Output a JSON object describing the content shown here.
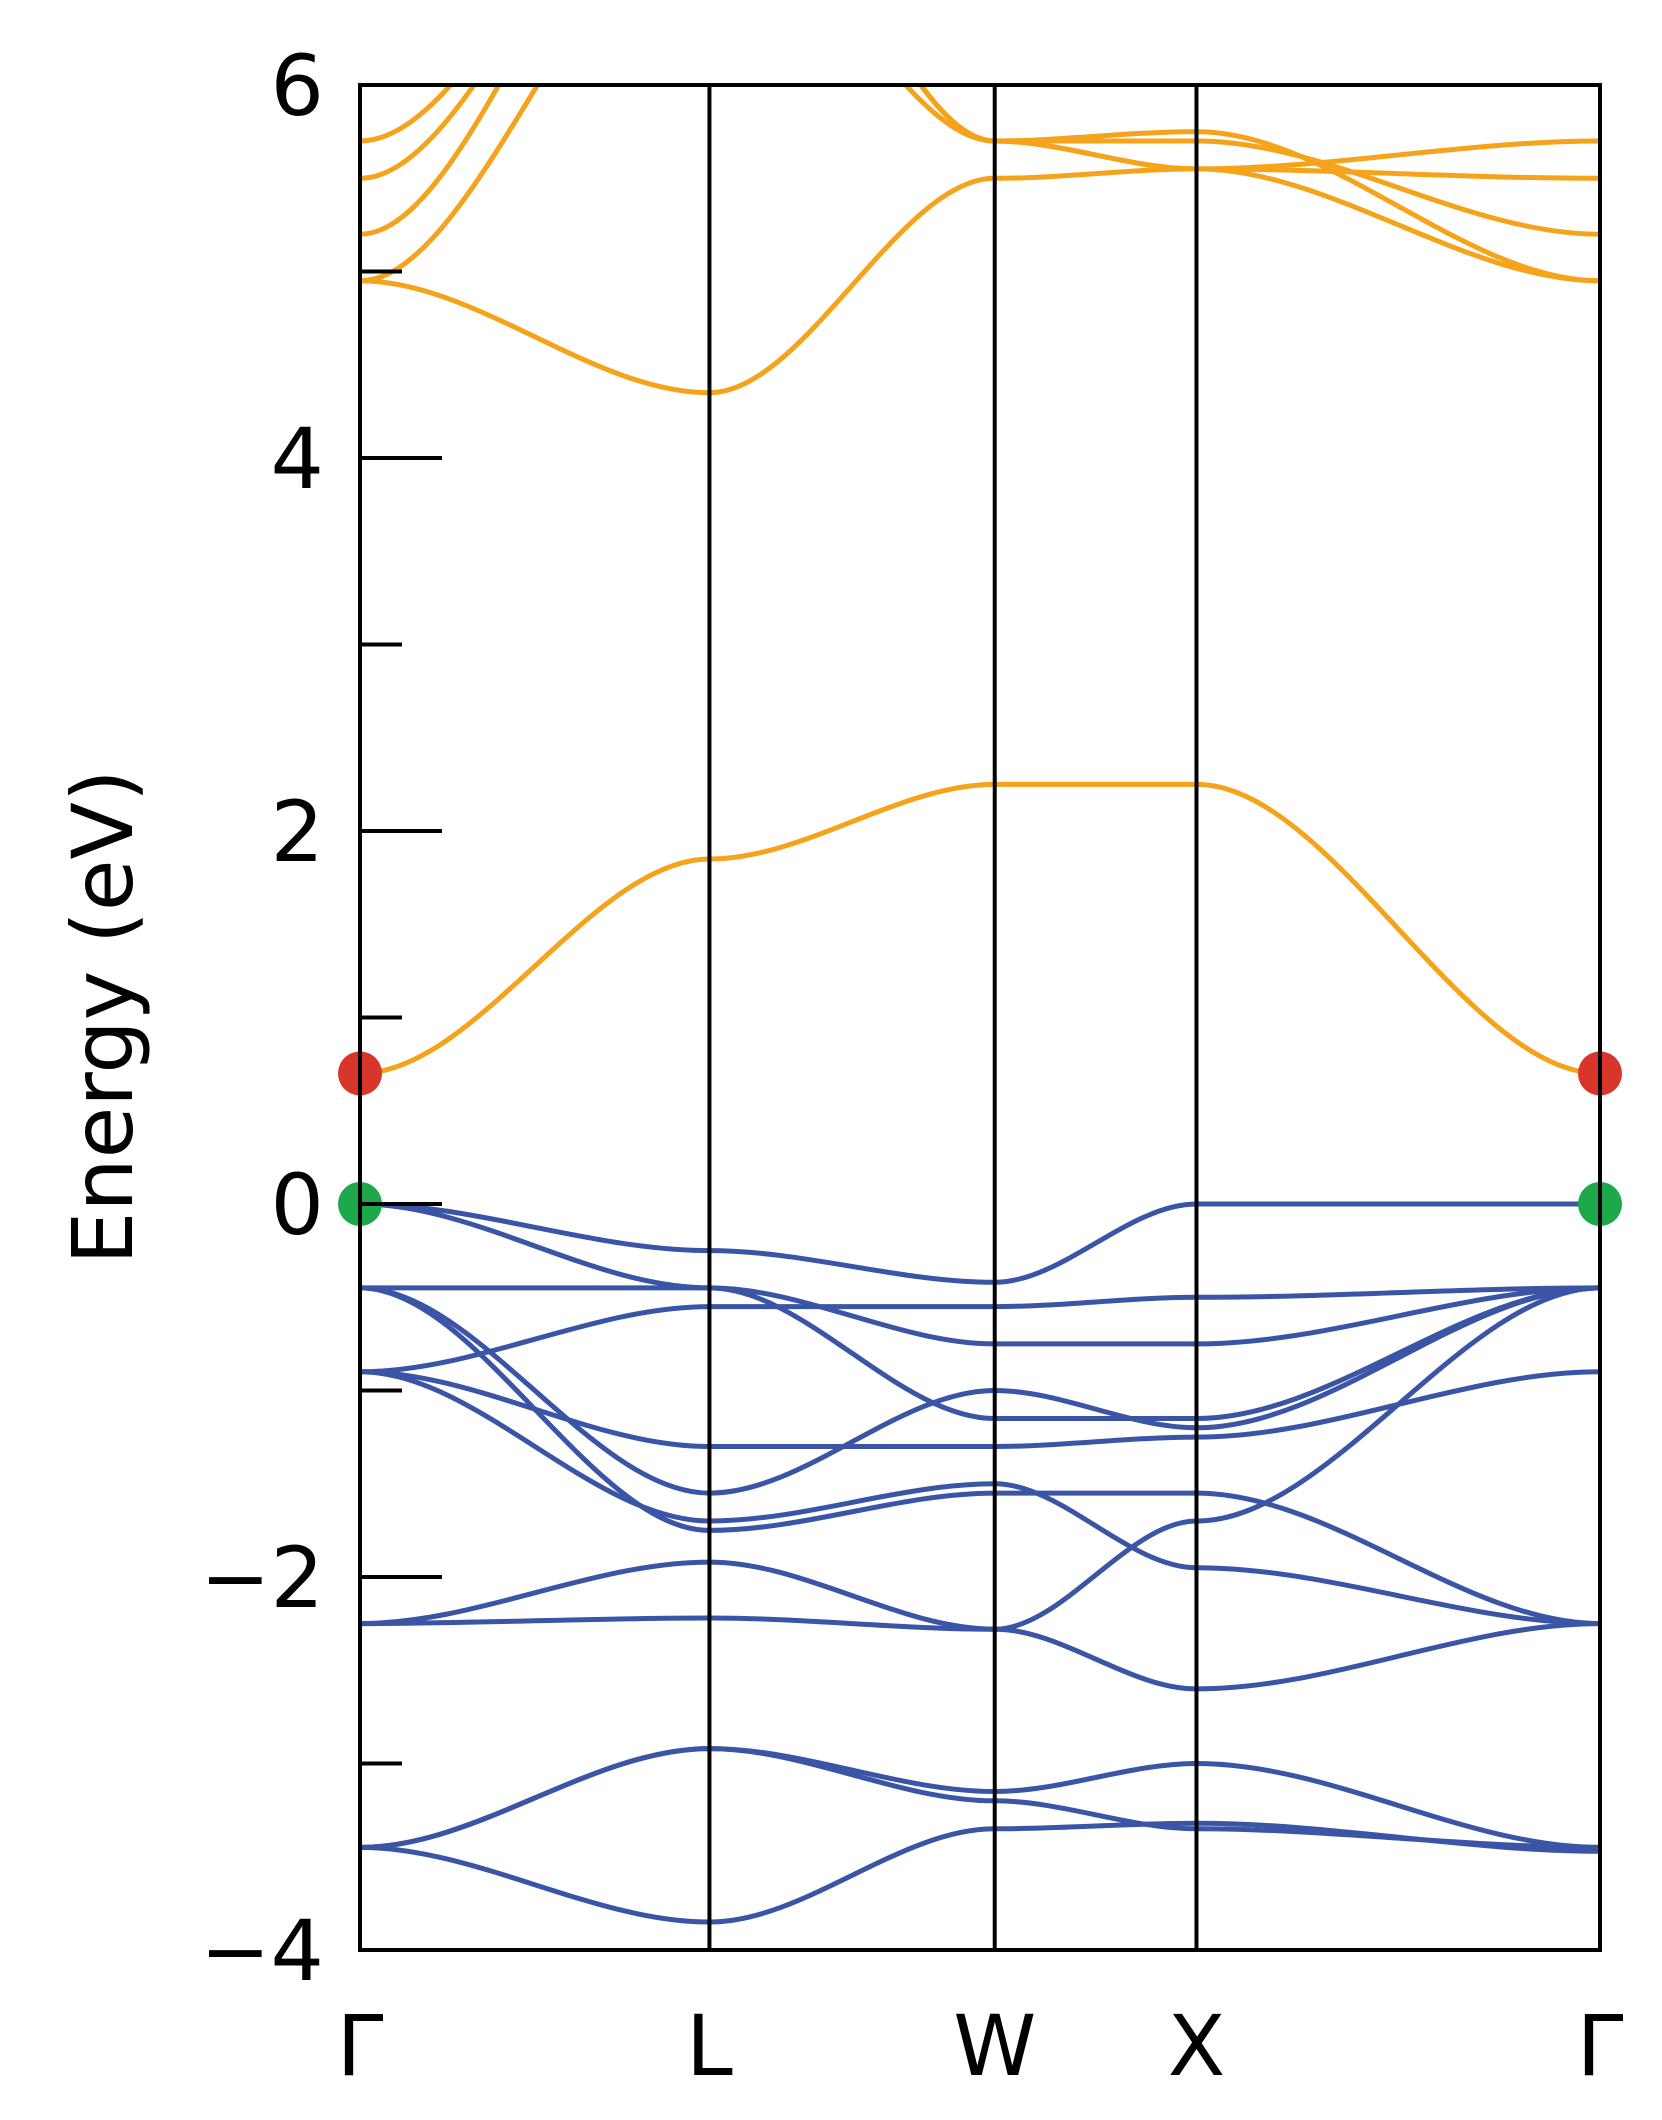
{
  "chart_data": {
    "type": "line",
    "title": "",
    "xlabel": "",
    "ylabel": "Energy (eV)",
    "ylim": [
      -4,
      6
    ],
    "y_major_ticks": [
      -4,
      -2,
      0,
      2,
      4,
      6
    ],
    "y_tick_labels": [
      "−4",
      "−2",
      "0",
      "2",
      "4",
      "6"
    ],
    "y_minor_ticks": [
      -3,
      -1,
      1,
      3,
      5
    ],
    "k_points": [
      {
        "label": "Γ",
        "x": 0.0
      },
      {
        "label": "L",
        "x": 0.866
      },
      {
        "label": "W",
        "x": 1.573
      },
      {
        "label": "X",
        "x": 2.073
      },
      {
        "label": "Γ",
        "x": 3.073
      }
    ],
    "colors": {
      "conduction": "#F5A31A",
      "valence": "#3A54A6",
      "cbm_marker": "#D8362B",
      "vbm_marker": "#1DA84A",
      "frame": "#000000"
    },
    "markers": [
      {
        "name": "CBM",
        "x": 0.0,
        "y": 0.7,
        "color": "#D8362B"
      },
      {
        "name": "CBM",
        "x": 3.073,
        "y": 0.7,
        "color": "#D8362B"
      },
      {
        "name": "VBM",
        "x": 0.0,
        "y": 0.0,
        "color": "#1DA84A"
      },
      {
        "name": "VBM",
        "x": 3.073,
        "y": 0.0,
        "color": "#1DA84A"
      }
    ],
    "series": [
      {
        "group": "valence",
        "x": [
          0,
          0.866,
          1.573,
          2.073,
          3.073
        ],
        "y": [
          -3.45,
          -2.92,
          -3.15,
          -3.0,
          -3.45
        ]
      },
      {
        "group": "valence",
        "x": [
          0,
          0.866,
          1.573,
          2.073,
          3.073
        ],
        "y": [
          -3.45,
          -2.92,
          -3.2,
          -3.35,
          -3.45
        ]
      },
      {
        "group": "valence",
        "x": [
          0,
          0.866,
          1.573,
          2.073,
          3.073
        ],
        "y": [
          -3.45,
          -3.85,
          -3.35,
          -3.32,
          -3.47
        ]
      },
      {
        "group": "valence",
        "x": [
          0,
          0.866,
          1.573,
          2.073,
          3.073
        ],
        "y": [
          -2.25,
          -1.92,
          -2.28,
          -2.6,
          -2.25
        ]
      },
      {
        "group": "valence",
        "x": [
          0,
          0.866,
          1.573,
          2.073,
          3.073
        ],
        "y": [
          -2.25,
          -2.22,
          -2.28,
          -1.7,
          -0.45
        ]
      },
      {
        "group": "valence",
        "x": [
          0,
          0.866,
          1.573,
          2.073,
          3.073
        ],
        "y": [
          -0.9,
          -1.7,
          -1.5,
          -1.95,
          -2.25
        ]
      },
      {
        "group": "valence",
        "x": [
          0,
          0.866,
          1.573,
          2.073,
          3.073
        ],
        "y": [
          -0.9,
          -1.3,
          -1.3,
          -1.25,
          -0.9
        ]
      },
      {
        "group": "valence",
        "x": [
          0,
          0.866,
          1.573,
          2.073,
          3.073
        ],
        "y": [
          -0.45,
          -1.55,
          -1.0,
          -1.2,
          -0.45
        ]
      },
      {
        "group": "valence",
        "x": [
          0,
          0.866,
          1.573,
          2.073,
          3.073
        ],
        "y": [
          -0.45,
          -1.75,
          -1.55,
          -1.55,
          -2.25
        ]
      },
      {
        "group": "valence",
        "x": [
          0,
          0.866,
          1.573,
          2.073,
          3.073
        ],
        "y": [
          -0.9,
          -0.55,
          -0.55,
          -0.5,
          -0.45
        ]
      },
      {
        "group": "valence",
        "x": [
          0,
          0.866,
          1.573,
          2.073,
          3.073
        ],
        "y": [
          -0.45,
          -0.45,
          -1.15,
          -1.15,
          -0.45
        ]
      },
      {
        "group": "valence",
        "x": [
          0,
          0.866,
          1.573,
          2.073,
          3.073
        ],
        "y": [
          0.0,
          -0.25,
          -0.42,
          0.0,
          0.0
        ]
      },
      {
        "group": "valence",
        "x": [
          0,
          0.866,
          1.573,
          2.073,
          3.073
        ],
        "y": [
          0.0,
          -0.45,
          -0.75,
          -0.75,
          -0.45
        ]
      },
      {
        "group": "conduction",
        "x": [
          0,
          0.866,
          1.573,
          2.073,
          3.073
        ],
        "y": [
          0.7,
          1.85,
          2.25,
          2.25,
          0.7
        ]
      },
      {
        "group": "conduction",
        "x": [
          0,
          0.866,
          1.573,
          2.073,
          3.073
        ],
        "y": [
          4.95,
          4.35,
          5.5,
          5.55,
          4.95
        ]
      },
      {
        "group": "conduction",
        "x": [
          0,
          0.866,
          1.573,
          2.073,
          3.073
        ],
        "y": [
          4.95,
          7.0,
          5.7,
          5.7,
          5.2
        ]
      },
      {
        "group": "conduction",
        "x": [
          0,
          0.866,
          1.573,
          2.073,
          3.073
        ],
        "y": [
          5.2,
          7.5,
          5.7,
          5.55,
          5.5
        ]
      },
      {
        "group": "conduction",
        "x": [
          0,
          0.866,
          1.573,
          2.073,
          3.073
        ],
        "y": [
          5.5,
          7.5,
          5.7,
          5.55,
          5.7
        ]
      },
      {
        "group": "conduction",
        "x": [
          0,
          0.866,
          1.573,
          2.073,
          3.073
        ],
        "y": [
          5.7,
          7.5,
          5.7,
          5.75,
          4.95
        ]
      }
    ]
  }
}
